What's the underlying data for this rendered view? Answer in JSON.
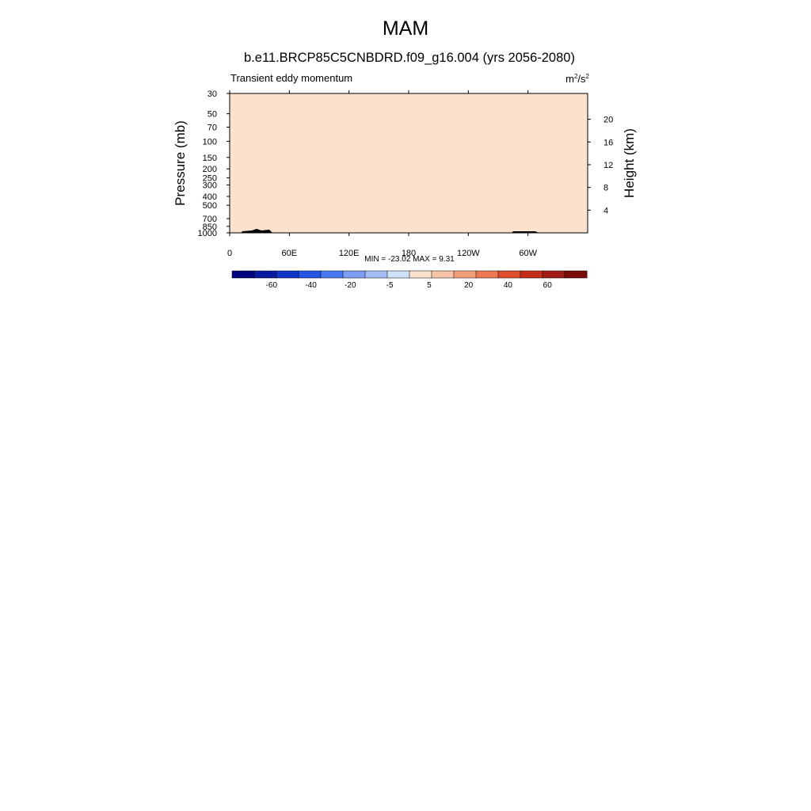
{
  "figure": {
    "title": "MAM",
    "colors": {
      "frame": "#000000",
      "topography": "#000000",
      "neutral": "#fbe2cf"
    }
  },
  "chart_data": [
    {
      "type": "heatmap",
      "title": "b.e11.BRCP85C5CNBDRD.f09_g16.004 (yrs 2056-2080)",
      "variable": "Transient eddy momentum",
      "units_base": "m",
      "units_sup1": "2",
      "units_mid": "/s",
      "units_sup2": "2",
      "ylabel": "Pressure (mb)",
      "y2label": "Height (km)",
      "x_ticks": [
        "0",
        "60E",
        "120E",
        "180",
        "120W",
        "60W"
      ],
      "x_range": [
        0,
        360
      ],
      "y_range_mb": [
        1000,
        30
      ],
      "y_log": true,
      "y_ticks": [
        "30",
        "50",
        "70",
        "100",
        "150",
        "200",
        "250",
        "300",
        "400",
        "500",
        "700",
        "850",
        "1000"
      ],
      "y2_ticks": [
        "20",
        "16",
        "12",
        "8",
        "4"
      ],
      "stats_text": "MIN = -23.02  MAX =   9.31",
      "min": -23.02,
      "max": 9.31,
      "colorbar_labels": [
        "-60",
        "-40",
        "-20",
        "-5",
        "5",
        "20",
        "40",
        "60"
      ],
      "colorbar_colors": [
        "#00007f",
        "#0719a0",
        "#1034c8",
        "#2553e6",
        "#4b78f0",
        "#7d9ef5",
        "#a6bdf6",
        "#d0e1f9",
        "#fbe2cf",
        "#f8c4a8",
        "#f2a07c",
        "#ec7852",
        "#e04d2d",
        "#c52d1a",
        "#a01c14",
        "#7a0b08"
      ],
      "data_rows": [
        "0000000000000000000000000000000000000000000000000000000000000000000000000000000000000000000000000000000000000000000000000000000000000000000000000000000000000000000000000000000000000",
        "0000000000000000000000000000000000000000000000000000000000000000000000000000000000000000000000000000000000000000000000000000000000000000000000000000000000000000000000000000000000000",
        "0000000000000000000000000000000000000000000000000000000000000000000000000000000000000000000000000000000000000000000000000000000000000000000000000000000000000000000000000000000000000",
        "0000000000000000000000000000000000000000000000000000000000000000000000000000000000000000000000000000000000000000000000000000000000000000000000000000000000000000000000000000000000000",
        "0000000000000000000000000000000000000000000000000000000000000000000000000000000000000000000000000000000000000000000000000000000000000000000000000000000000000000000000000000000000000",
        "0000000000000000000000000000000000000000000000000000000000000000000000000000000000000000000000000000000000000000000000000000000000000000000000000000000000000000000000000000000000000",
        "0000000000000000000000000000000000000000000000000000000000000000000000000000000000000000000000000000000000000000000000000000000000000000000000000000000000000000000000000000000000000",
        "0000000000000000000000000000000000000000000000000000000000000000000000000000000000000000000000000000000000000000000000000000000000000000000000000000000000000000000000000000000000000",
        "0000000000000000000000000000000000000000000000000000000000000000000000000000000000000000000000000000000000000000000000000000000000000000000000000000000000000000000000000000000000000",
        "0000000000000000000000000000000000000000000000000000000000000000000000000000000000000000000000000000000000000000000000000000000000000000000000000000000000000000000000000000000000000"
      ]
    }
  ]
}
